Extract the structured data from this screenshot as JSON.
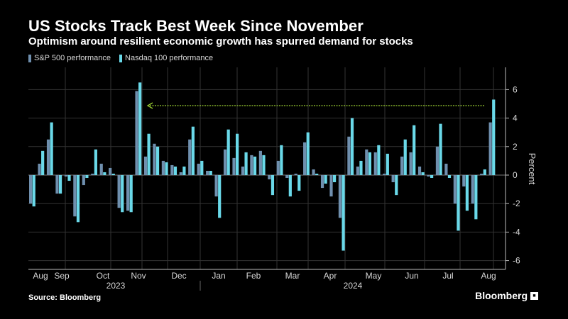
{
  "header": {
    "title": "US Stocks Track Best Week Since November",
    "subtitle": "Optimism around resilient economic growth has spurred demand for stocks"
  },
  "footer": {
    "source": "Source: Bloomberg",
    "brand": "Bloomberg"
  },
  "colors": {
    "background": "#000000",
    "sp500": "#6f8fae",
    "nasdaq": "#6ad9e9",
    "arrow": "#9acd32",
    "grid": "#333333"
  },
  "chart_data": {
    "type": "bar",
    "ylabel": "Percent",
    "ylim": [
      -6.8,
      7.5
    ],
    "yticks": [
      -6,
      -4,
      -2,
      0,
      2,
      4,
      6
    ],
    "grid": true,
    "y_axis_side": "right",
    "legend_placement": "top-left",
    "month_labels": [
      "Aug",
      "Sep",
      "Oct",
      "Nov",
      "Dec",
      "Jan",
      "Feb",
      "Mar",
      "Apr",
      "May",
      "Jun",
      "Jul",
      "Aug"
    ],
    "year_labels": [
      "2023",
      "2024"
    ],
    "annotation": "arrow from latest week back to November 2023",
    "series": [
      {
        "name": "S&P 500 performance",
        "values": [
          -2.0,
          0.8,
          2.5,
          -1.3,
          -0.1,
          -2.9,
          -0.7,
          0.1,
          0.8,
          0.5,
          -2.3,
          -2.5,
          5.9,
          1.3,
          2.2,
          1.0,
          0.7,
          0.2,
          2.5,
          0.8,
          0.3,
          -1.5,
          1.8,
          1.2,
          0.6,
          1.4,
          1.7,
          -0.3,
          1.0,
          -0.2,
          0.1,
          2.3,
          0.4,
          -0.9,
          -1.5,
          -3.0,
          2.7,
          0.6,
          1.8,
          1.6,
          0.1,
          -0.5,
          1.3,
          1.6,
          0.6,
          -0.1,
          2.0,
          0.8,
          -2.0,
          -0.8,
          -2.0,
          0.1,
          3.7
        ]
      },
      {
        "name": "Nasdaq 100 performance",
        "values": [
          -2.2,
          1.7,
          3.7,
          -1.3,
          -0.4,
          -3.3,
          -0.2,
          1.8,
          0.2,
          0.1,
          -2.6,
          -2.6,
          6.5,
          2.9,
          2.0,
          0.9,
          0.6,
          0.6,
          3.4,
          1.0,
          0.3,
          -3.0,
          3.2,
          2.9,
          1.6,
          1.3,
          1.4,
          -1.4,
          2.1,
          -1.5,
          -1.1,
          3.0,
          0.1,
          -0.6,
          -0.5,
          -5.3,
          4.0,
          1.0,
          1.6,
          2.1,
          1.5,
          -1.4,
          2.5,
          3.5,
          0.2,
          -0.2,
          3.6,
          -0.2,
          -3.9,
          -2.5,
          -3.1,
          0.4,
          5.3
        ]
      }
    ]
  }
}
